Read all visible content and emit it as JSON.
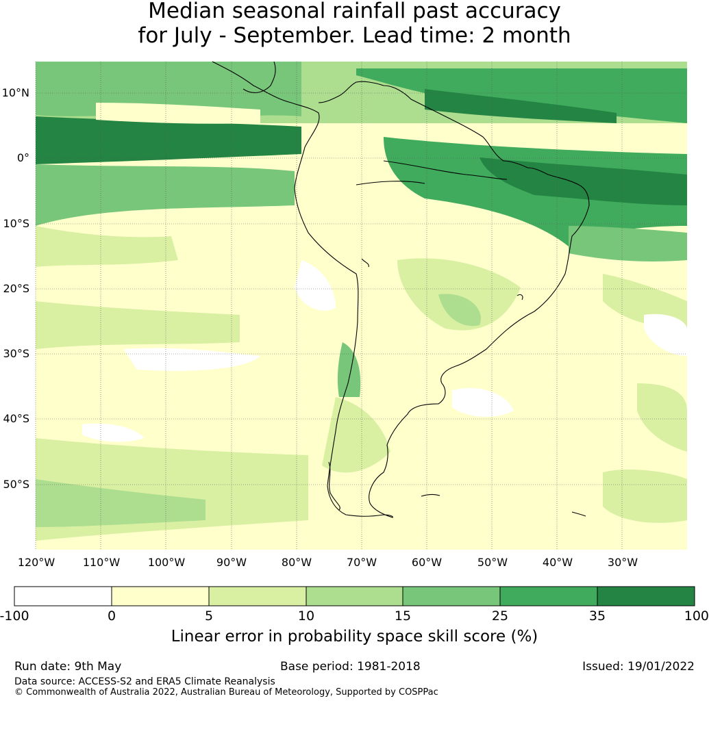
{
  "title": {
    "line1": "Median seasonal rainfall past accuracy",
    "line2": "for July - September. Lead time: 2 month"
  },
  "map": {
    "lat_labels": [
      "10°N",
      "0°",
      "10°S",
      "20°S",
      "30°S",
      "40°S",
      "50°S"
    ],
    "lon_labels": [
      "120°W",
      "110°W",
      "100°W",
      "90°W",
      "80°W",
      "70°W",
      "60°W",
      "50°W",
      "40°W",
      "30°W"
    ]
  },
  "colorbar": {
    "ticks": [
      "-100",
      "0",
      "5",
      "10",
      "15",
      "25",
      "35",
      "100"
    ],
    "colors": [
      "#ffffff",
      "#ffffcc",
      "#d9f0a3",
      "#addd8e",
      "#78c679",
      "#41ab5d",
      "#238443"
    ],
    "label": "Linear error in probability space skill score (%)"
  },
  "footer": {
    "run_date": "Run date: 9th May",
    "base_period": "Base period: 1981-2018",
    "issued": "Issued: 19/01/2022",
    "data_source": "Data source: ACCESS-S2 and ERA5 Climate Reanalysis",
    "copyright": "© Commonwealth of Australia 2022, Australian Bureau of Meteorology, Supported by COSPPac"
  }
}
